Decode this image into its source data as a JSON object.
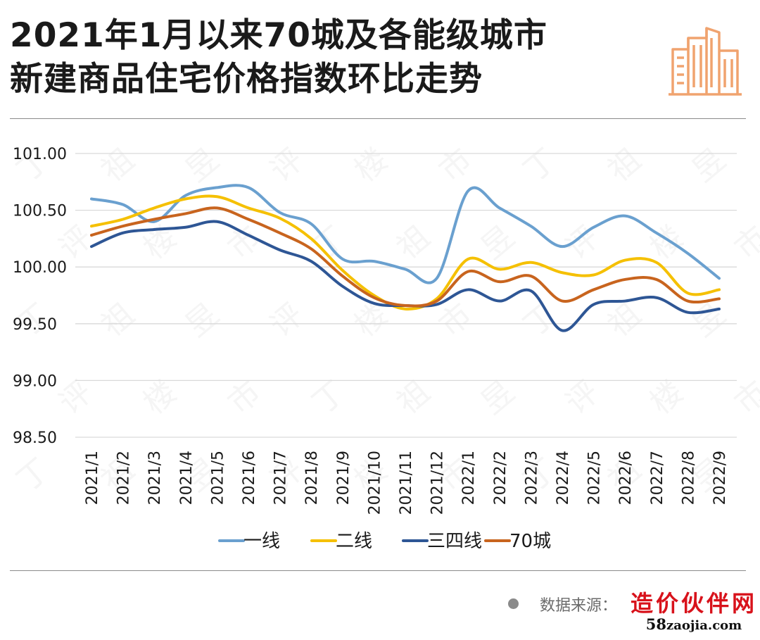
{
  "title_lines": [
    "2021年1月以来70城及各能级城市",
    "新建商品住宅价格指数环比走势"
  ],
  "source_label": "数据来源：",
  "brand": {
    "name": "造价伙伴网",
    "url_prefix": "58",
    "url_rest": "zaojia.com"
  },
  "colors": {
    "tier1": "#6aa0cf",
    "tier2": "#f5c000",
    "tier34": "#2e5695",
    "city70": "#c8641e",
    "logo": "#f0a36f",
    "grid": "#d9d9d9"
  },
  "chart_data": {
    "type": "line",
    "title": "",
    "xlabel": "",
    "ylabel": "",
    "ylim": [
      98.5,
      101.0
    ],
    "yticks": [
      "101.00",
      "100.50",
      "100.00",
      "99.50",
      "99.00",
      "98.50"
    ],
    "grid": true,
    "legend_position": "bottom",
    "x": [
      "2021/1",
      "2021/2",
      "2021/3",
      "2021/4",
      "2021/5",
      "2021/6",
      "2021/7",
      "2021/8",
      "2021/9",
      "2021/10",
      "2021/11",
      "2021/12",
      "2022/1",
      "2022/2",
      "2022/3",
      "2022/4",
      "2022/5",
      "2022/6",
      "2022/7",
      "2022/8",
      "2022/9"
    ],
    "series": [
      {
        "name": "一线",
        "color": "#6aa0cf",
        "values": [
          100.6,
          100.55,
          100.4,
          100.63,
          100.7,
          100.7,
          100.48,
          100.38,
          100.07,
          100.05,
          99.98,
          99.9,
          100.67,
          100.52,
          100.36,
          100.18,
          100.35,
          100.45,
          100.3,
          100.12,
          99.9
        ]
      },
      {
        "name": "二线",
        "color": "#f5c000",
        "values": [
          100.36,
          100.42,
          100.52,
          100.6,
          100.62,
          100.52,
          100.43,
          100.25,
          99.97,
          99.75,
          99.63,
          99.72,
          100.07,
          99.98,
          100.04,
          99.95,
          99.93,
          100.06,
          100.04,
          99.77,
          99.8
        ]
      },
      {
        "name": "三四线",
        "color": "#2e5695",
        "values": [
          100.18,
          100.3,
          100.33,
          100.35,
          100.4,
          100.28,
          100.15,
          100.05,
          99.83,
          99.68,
          99.66,
          99.67,
          99.8,
          99.7,
          99.79,
          99.44,
          99.67,
          99.7,
          99.73,
          99.6,
          99.63
        ]
      },
      {
        "name": "70城",
        "color": "#c8641e",
        "values": [
          100.28,
          100.36,
          100.42,
          100.47,
          100.52,
          100.42,
          100.3,
          100.16,
          99.92,
          99.73,
          99.66,
          99.7,
          99.96,
          99.87,
          99.92,
          99.7,
          99.8,
          99.89,
          99.89,
          99.7,
          99.72
        ]
      }
    ]
  }
}
